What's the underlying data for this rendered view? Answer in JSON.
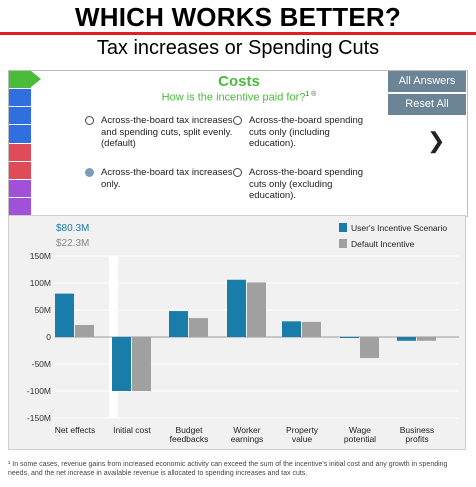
{
  "header": {
    "headline": "WHICH WORKS BETTER?",
    "subheadline": "Tax increases or Spending Cuts",
    "rule_color": "#e02020"
  },
  "question": {
    "title": "Costs",
    "prompt": "How is the incentive paid for?",
    "prompt_marks": "1 ®",
    "accent_color": "#4cbb3c",
    "progress_strip_colors": [
      "#4cbb3c",
      "#2f6fe0",
      "#2f6fe0",
      "#2f6fe0",
      "#e04b5a",
      "#e04b5a",
      "#a150d8",
      "#a150d8"
    ],
    "options": [
      {
        "text": "Across-the-board tax increases and spending cuts, split evenly. (default)",
        "selected": false
      },
      {
        "text": "Across-the-board spending cuts only (including education).",
        "selected": false
      },
      {
        "text": "Across-the-board tax increases only.",
        "selected": true
      },
      {
        "text": "Across-the-board spending cuts only (excluding education).",
        "selected": false
      }
    ]
  },
  "buttons": {
    "all_answers": "All Answers",
    "reset_all": "Reset All",
    "next_icon": "chevron-right-icon"
  },
  "chart_data": {
    "type": "bar",
    "summary": {
      "user_total": "$80.3M",
      "default_total": "$22.3M"
    },
    "categories": [
      "Net effects",
      "Initial cost",
      "Budget feedbacks",
      "Worker earnings",
      "Property value",
      "Wage potential",
      "Business profits"
    ],
    "category_labels": [
      [
        "Net effects"
      ],
      [
        "Initial cost"
      ],
      [
        "Budget",
        "feedbacks"
      ],
      [
        "Worker",
        "earnings"
      ],
      [
        "Property",
        "value"
      ],
      [
        "Wage",
        "potential"
      ],
      [
        "Business",
        "profits"
      ]
    ],
    "series": [
      {
        "name": "User's Incentive Scenario",
        "color": "#1a7ca8",
        "values": [
          80.3,
          -100,
          48,
          106,
          29,
          -1,
          -7
        ]
      },
      {
        "name": "Default Incentive",
        "color": "#a0a0a0",
        "values": [
          22.3,
          -100,
          35,
          101,
          28,
          -39,
          -7
        ]
      }
    ],
    "y_ticks": [
      "150M",
      "100M",
      "50M",
      "0",
      "-50M",
      "-100M",
      "-150M"
    ],
    "ylim": [
      -150,
      150
    ],
    "grid": true,
    "legend": "top-right"
  },
  "footnote": "¹ In some cases, revenue gains from increased economic activity can exceed the sum of the incentive's initial cost and any growth in spending needs, and the net increase in available revenue is allocated to spending increases and tax cuts."
}
